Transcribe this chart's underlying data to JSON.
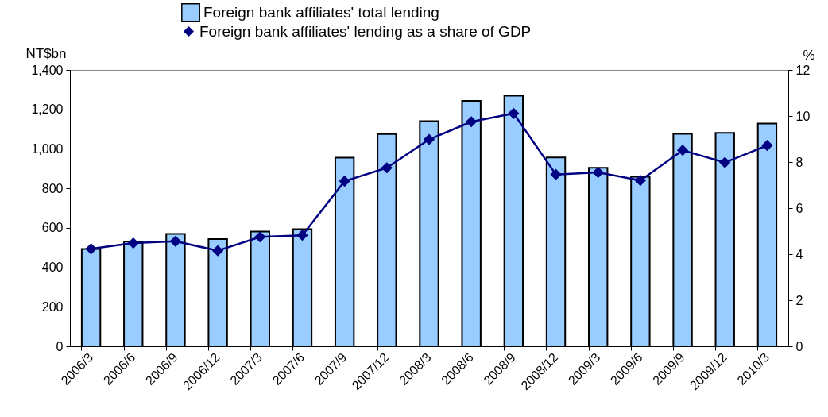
{
  "chart_data": {
    "type": "bar",
    "categories": [
      "2006/3",
      "2006/6",
      "2006/9",
      "2006/12",
      "2007/3",
      "2007/6",
      "2007/9",
      "2007/12",
      "2008/3",
      "2008/6",
      "2008/9",
      "2008/12",
      "2009/3",
      "2009/6",
      "2009/9",
      "2009/12",
      "2010/3"
    ],
    "series": [
      {
        "name": "Foreign bank affiliates' total lending",
        "color": "#99ccff",
        "values": [
          493,
          531,
          569,
          543,
          581,
          593,
          955,
          1075,
          1141,
          1243,
          1269,
          956,
          904,
          859,
          1076,
          1081,
          1128
        ]
      },
      {
        "name": "Foreign bank affiliates' lending as a share of GDP",
        "type": "line",
        "axis": "y2",
        "color": "#000080",
        "values": [
          4.23,
          4.48,
          4.56,
          4.15,
          4.75,
          4.82,
          7.17,
          7.75,
          8.98,
          9.75,
          10.11,
          7.46,
          7.55,
          7.2,
          8.51,
          7.98,
          8.72
        ]
      }
    ],
    "ylabel": "NT$bn",
    "y2label": "%",
    "ylim": [
      0,
      1400
    ],
    "yticks": [
      0,
      {
        "value": 200,
        "label": "200"
      },
      {
        "value": 400,
        "label": "400"
      },
      {
        "value": 600,
        "label": "600"
      },
      {
        "value": 800,
        "label": "800"
      },
      {
        "value": 1000,
        "label": "1,000"
      },
      {
        "value": 1200,
        "label": "1,200"
      },
      {
        "value": 1400,
        "label": "1,400"
      }
    ],
    "y2lim": [
      0,
      12
    ],
    "y2ticks": [
      0,
      2,
      4,
      6,
      8,
      10,
      12
    ],
    "marker": "diamond",
    "line_style": "solid",
    "legend": "top",
    "grid": false
  }
}
